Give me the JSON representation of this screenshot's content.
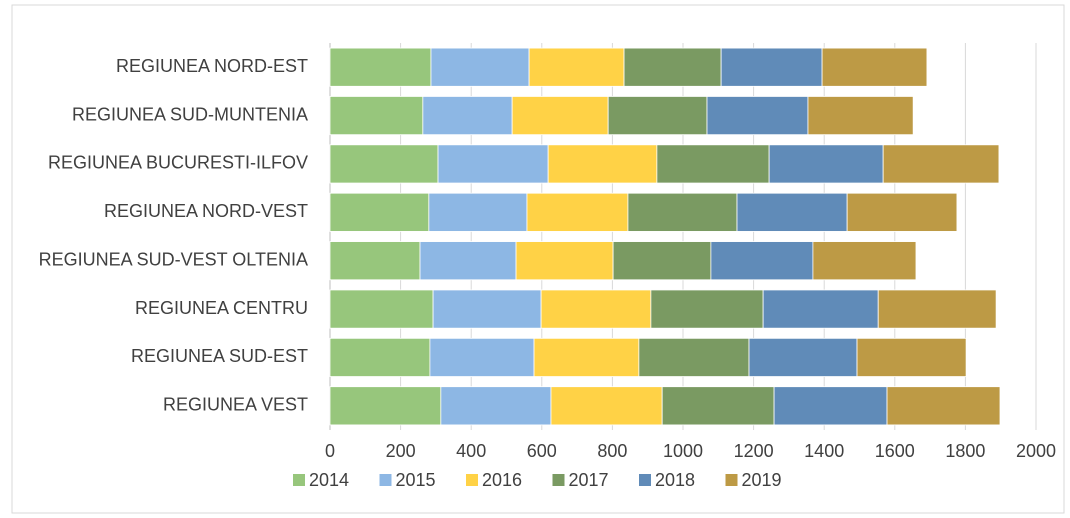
{
  "chart_data": {
    "type": "bar",
    "orientation": "horizontal",
    "stacked": true,
    "categories": [
      "REGIUNEA NORD-EST",
      "REGIUNEA SUD-MUNTENIA",
      "REGIUNEA BUCURESTI-ILFOV",
      "REGIUNEA NORD-VEST",
      "REGIUNEA SUD-VEST OLTENIA",
      "REGIUNEA CENTRU",
      "REGIUNEA SUD-EST",
      "REGIUNEA VEST"
    ],
    "series": [
      {
        "name": "2014",
        "color": "#97c67c",
        "values": [
          286,
          263,
          306,
          280,
          255,
          292,
          283,
          314
        ]
      },
      {
        "name": "2015",
        "color": "#8db7e4",
        "values": [
          278,
          253,
          312,
          278,
          272,
          306,
          295,
          312
        ]
      },
      {
        "name": "2016",
        "color": "#ffd246",
        "values": [
          269,
          272,
          308,
          286,
          275,
          311,
          297,
          315
        ]
      },
      {
        "name": "2017",
        "color": "#7a9a62",
        "values": [
          275,
          280,
          318,
          309,
          277,
          318,
          312,
          317
        ]
      },
      {
        "name": "2018",
        "color": "#608bb8",
        "values": [
          286,
          286,
          323,
          312,
          289,
          326,
          306,
          320
        ]
      },
      {
        "name": "2019",
        "color": "#bd9a45",
        "values": [
          297,
          298,
          328,
          311,
          292,
          334,
          309,
          320
        ]
      }
    ],
    "xlim": [
      0,
      2000
    ],
    "xticks": [
      0,
      200,
      400,
      600,
      800,
      1000,
      1200,
      1400,
      1600,
      1800,
      2000
    ],
    "grid": true,
    "legend": "bottom"
  }
}
